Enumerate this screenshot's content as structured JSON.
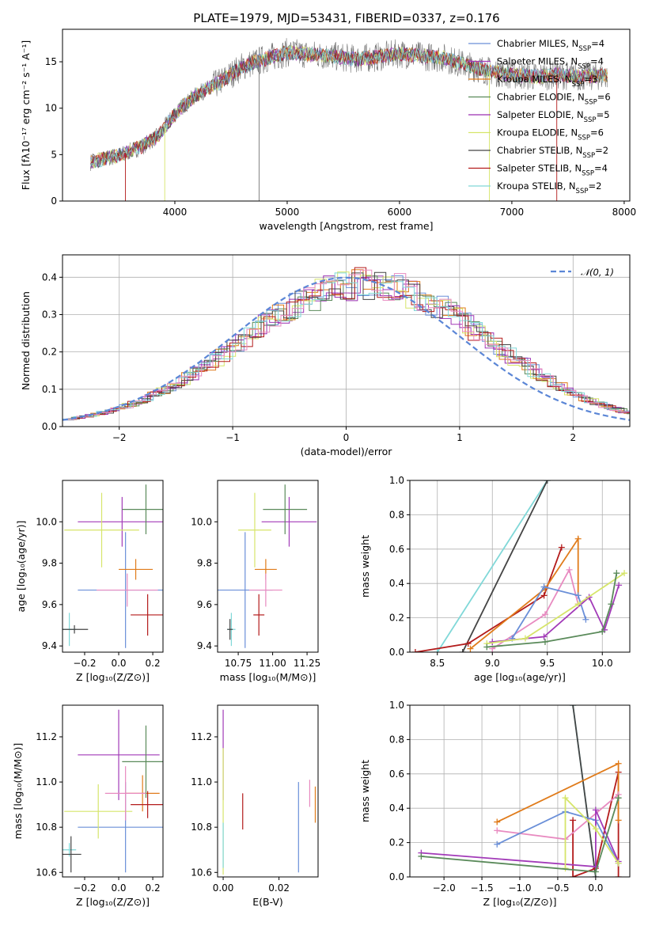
{
  "figure_title": "PLATE=1979, MJD=53431, FIBERID=0337, z=0.176",
  "colors": {
    "Chabrier MILES": "#6a8fd8",
    "Salpeter MILES": "#a23ab8",
    "Kroupa MILES": "#e07b1a",
    "Chabrier ELODIE": "#5a8a5a",
    "Salpeter ELODIE": "#9a2fb0",
    "Kroupa ELODIE": "#d6e56a",
    "Chabrier STELIB": "#444444",
    "Salpeter STELIB": "#b31b1b",
    "Kroupa STELIB": "#80d8d8",
    "pink": "#e88ac0",
    "data": "#777777",
    "gauss": "#5b86d6"
  },
  "chart_data": [
    {
      "id": "spectrum",
      "type": "line",
      "title": "PLATE=1979, MJD=53431, FIBERID=0337, z=0.176",
      "xlabel": "wavelength [Angstrom, rest frame]",
      "ylabel": "Flux [fλ10⁻¹⁷ erg cm⁻² s⁻¹ A⁻¹]",
      "xlim": [
        3000,
        8050
      ],
      "ylim": [
        0,
        18.5
      ],
      "xticks": [
        4000,
        5000,
        6000,
        7000,
        8000
      ],
      "yticks": [
        0,
        5,
        10,
        15
      ],
      "continuum_points": [
        [
          3250,
          4.2
        ],
        [
          3500,
          4.9
        ],
        [
          3700,
          5.8
        ],
        [
          3850,
          7.0
        ],
        [
          3950,
          8.6
        ],
        [
          4050,
          10.0
        ],
        [
          4200,
          11.5
        ],
        [
          4400,
          12.8
        ],
        [
          4600,
          14.5
        ],
        [
          4800,
          15.3
        ],
        [
          5000,
          16.0
        ],
        [
          5200,
          15.8
        ],
        [
          5400,
          15.6
        ],
        [
          5600,
          15.3
        ],
        [
          5800,
          15.5
        ],
        [
          6000,
          15.9
        ],
        [
          6200,
          15.6
        ],
        [
          6400,
          15.4
        ],
        [
          6600,
          14.6
        ],
        [
          6800,
          14.0
        ],
        [
          7000,
          13.6
        ],
        [
          7200,
          13.4
        ],
        [
          7400,
          13.6
        ],
        [
          7600,
          13.4
        ],
        [
          7850,
          13.5
        ]
      ],
      "legend": [
        {
          "label": "Chabrier MILES, N",
          "sub": "SSP",
          "suffix": "=4"
        },
        {
          "label": "Salpeter MILES, N",
          "sub": "SSP",
          "suffix": "=4"
        },
        {
          "label": "Kroupa MILES, N",
          "sub": "SSP",
          "suffix": "=3"
        },
        {
          "label": "Chabrier ELODIE, N",
          "sub": "SSP",
          "suffix": "=6"
        },
        {
          "label": "Salpeter ELODIE, N",
          "sub": "SSP",
          "suffix": "=5"
        },
        {
          "label": "Kroupa ELODIE, N",
          "sub": "SSP",
          "suffix": "=6"
        },
        {
          "label": "Chabrier STELIB, N",
          "sub": "SSP",
          "suffix": "=2"
        },
        {
          "label": "Salpeter STELIB, N",
          "sub": "SSP",
          "suffix": "=4"
        },
        {
          "label": "Kroupa STELIB, N",
          "sub": "SSP",
          "suffix": "=2"
        }
      ],
      "legend_location": "lower right"
    },
    {
      "id": "residuals",
      "type": "line",
      "xlabel": "(data-model)/error",
      "ylabel": "Normed distribution",
      "xlim": [
        -2.5,
        2.5
      ],
      "ylim": [
        0,
        0.46
      ],
      "xticks": [
        -2,
        -1,
        0,
        1,
        2
      ],
      "yticks": [
        0.0,
        0.1,
        0.2,
        0.3,
        0.4
      ],
      "legend": [
        {
          "label": "𝒩(0, 1)"
        }
      ],
      "legend_location": "upper right",
      "grid": true
    },
    {
      "id": "age_vs_Z",
      "type": "scatter",
      "xlabel": "Z [log₁₀(Z/Z⊙)]",
      "ylabel": "age  [log₁₀(age/yr)]",
      "xlim": [
        -0.33,
        0.26
      ],
      "ylim": [
        9.37,
        10.2
      ],
      "xticks": [
        -0.2,
        0.0,
        0.2
      ],
      "yticks": [
        9.4,
        9.6,
        9.8,
        10.0
      ],
      "points": [
        {
          "model": "Chabrier MILES",
          "x": 0.04,
          "y": 9.67,
          "xerr": 0.28,
          "yerr": 0.28
        },
        {
          "model": "Salpeter MILES",
          "x": 0.02,
          "y": 10.0,
          "xerr": 0.26,
          "yerr": 0.12
        },
        {
          "model": "Kroupa MILES",
          "x": 0.1,
          "y": 9.77,
          "xerr": 0.1,
          "yerr": 0.05
        },
        {
          "model": "Chabrier ELODIE",
          "x": 0.16,
          "y": 10.06,
          "xerr": 0.14,
          "yerr": 0.12
        },
        {
          "model": "Kroupa ELODIE",
          "x": -0.1,
          "y": 9.96,
          "xerr": 0.22,
          "yerr": 0.18
        },
        {
          "model": "pink",
          "x": 0.05,
          "y": 9.67,
          "xerr": 0.18,
          "yerr": 0.08
        },
        {
          "model": "Salpeter STELIB",
          "x": 0.17,
          "y": 9.55,
          "xerr": 0.1,
          "yerr": 0.1
        },
        {
          "model": "Kroupa STELIB",
          "x": -0.29,
          "y": 9.48,
          "xerr": 0.04,
          "yerr": 0.08
        },
        {
          "model": "Chabrier STELIB",
          "x": -0.26,
          "y": 9.48,
          "xerr": 0.08,
          "yerr": 0.02
        }
      ]
    },
    {
      "id": "age_vs_mass",
      "type": "scatter",
      "xlabel": "mass [log₁₀(M/M⊙)]",
      "ylabel": "",
      "xlim": [
        10.6,
        11.33
      ],
      "ylim": [
        9.37,
        10.2
      ],
      "xticks": [
        10.75,
        11.0,
        11.25
      ],
      "yticks": [
        9.4,
        9.6,
        9.8,
        10.0
      ],
      "points": [
        {
          "model": "Chabrier MILES",
          "x": 10.8,
          "y": 9.67,
          "xerr": 0.2,
          "yerr": 0.28
        },
        {
          "model": "Salpeter MILES",
          "x": 11.12,
          "y": 10.0,
          "xerr": 0.2,
          "yerr": 0.12
        },
        {
          "model": "Kroupa MILES",
          "x": 10.95,
          "y": 9.77,
          "xerr": 0.08,
          "yerr": 0.05
        },
        {
          "model": "Chabrier ELODIE",
          "x": 11.09,
          "y": 10.06,
          "xerr": 0.16,
          "yerr": 0.12
        },
        {
          "model": "Kroupa ELODIE",
          "x": 10.87,
          "y": 9.96,
          "xerr": 0.12,
          "yerr": 0.18
        },
        {
          "model": "pink",
          "x": 10.95,
          "y": 9.67,
          "xerr": 0.12,
          "yerr": 0.08
        },
        {
          "model": "Salpeter STELIB",
          "x": 10.9,
          "y": 9.55,
          "xerr": 0.04,
          "yerr": 0.1
        },
        {
          "model": "Kroupa STELIB",
          "x": 10.7,
          "y": 9.48,
          "xerr": 0.03,
          "yerr": 0.08
        },
        {
          "model": "Chabrier STELIB",
          "x": 10.69,
          "y": 9.48,
          "xerr": 0.02,
          "yerr": 0.05
        }
      ]
    },
    {
      "id": "massweight_vs_age",
      "type": "line",
      "xlabel": "age  [log₁₀(age/yr)]",
      "ylabel": "mass weight",
      "xlim": [
        8.25,
        10.25
      ],
      "ylim": [
        0,
        1
      ],
      "xticks": [
        8.5,
        9.0,
        9.5,
        10.0
      ],
      "yticks": [
        0.0,
        0.2,
        0.4,
        0.6,
        0.8,
        1.0
      ],
      "grid": true,
      "series": [
        {
          "model": "Kroupa STELIB",
          "x": [
            8.5,
            9.5
          ],
          "y": [
            0.0,
            1.0
          ]
        },
        {
          "model": "Chabrier STELIB",
          "x": [
            8.73,
            9.5
          ],
          "y": [
            0.0,
            1.0
          ]
        },
        {
          "model": "Salpeter STELIB",
          "x": [
            8.3,
            8.78,
            9.47,
            9.63
          ],
          "y": [
            0.0,
            0.05,
            0.33,
            0.61
          ]
        },
        {
          "model": "Kroupa MILES",
          "x": [
            8.8,
            9.48,
            9.78,
            9.78
          ],
          "y": [
            0.02,
            0.37,
            0.66,
            0.33
          ]
        },
        {
          "model": "pink",
          "x": [
            9.0,
            9.48,
            9.7,
            9.78
          ],
          "y": [
            0.02,
            0.22,
            0.48,
            0.28
          ]
        },
        {
          "model": "Chabrier MILES",
          "x": [
            9.18,
            9.47,
            9.78,
            9.85
          ],
          "y": [
            0.08,
            0.38,
            0.33,
            0.19
          ]
        },
        {
          "model": "Salpeter MILES",
          "x": [
            9.0,
            9.47,
            9.88,
            10.02,
            10.15
          ],
          "y": [
            0.06,
            0.09,
            0.32,
            0.13,
            0.39
          ]
        },
        {
          "model": "Kroupa ELODIE",
          "x": [
            8.95,
            9.3,
            9.78,
            10.2
          ],
          "y": [
            0.05,
            0.08,
            0.28,
            0.46
          ]
        },
        {
          "model": "Chabrier ELODIE",
          "x": [
            8.95,
            9.48,
            10.0,
            10.08,
            10.13
          ],
          "y": [
            0.03,
            0.06,
            0.12,
            0.28,
            0.46
          ]
        }
      ]
    },
    {
      "id": "mass_vs_Z",
      "type": "scatter",
      "xlabel": "Z [log₁₀(Z/Z⊙)]",
      "ylabel": "mass [log₁₀(M/M⊙)]",
      "xlim": [
        -0.33,
        0.26
      ],
      "ylim": [
        10.58,
        11.34
      ],
      "xticks": [
        -0.2,
        0.0,
        0.2
      ],
      "yticks": [
        10.6,
        10.8,
        11.0,
        11.2
      ],
      "points": [
        {
          "model": "Chabrier MILES",
          "x": 0.04,
          "y": 10.8,
          "xerr": 0.28,
          "yerr": 0.2
        },
        {
          "model": "Salpeter MILES",
          "x": 0.0,
          "y": 11.12,
          "xerr": 0.24,
          "yerr": 0.2
        },
        {
          "model": "Kroupa MILES",
          "x": 0.14,
          "y": 10.95,
          "xerr": 0.1,
          "yerr": 0.08
        },
        {
          "model": "Chabrier ELODIE",
          "x": 0.16,
          "y": 11.09,
          "xerr": 0.14,
          "yerr": 0.16
        },
        {
          "model": "Kroupa ELODIE",
          "x": -0.12,
          "y": 10.87,
          "xerr": 0.2,
          "yerr": 0.12
        },
        {
          "model": "pink",
          "x": 0.04,
          "y": 10.95,
          "xerr": 0.12,
          "yerr": 0.12
        },
        {
          "model": "Salpeter STELIB",
          "x": 0.17,
          "y": 10.9,
          "xerr": 0.1,
          "yerr": 0.06
        },
        {
          "model": "Kroupa STELIB",
          "x": -0.29,
          "y": 10.7,
          "xerr": 0.04,
          "yerr": 0.03
        },
        {
          "model": "Chabrier STELIB",
          "x": -0.28,
          "y": 10.68,
          "xerr": 0.06,
          "yerr": 0.08
        }
      ]
    },
    {
      "id": "mass_vs_ebv",
      "type": "scatter",
      "xlabel": "E(B-V)",
      "ylabel": "",
      "xlim": [
        -0.002,
        0.034
      ],
      "ylim": [
        10.58,
        11.34
      ],
      "xticks": [
        0.0,
        0.02
      ],
      "yticks": [
        10.6,
        10.8,
        11.0,
        11.2
      ],
      "points": [
        {
          "model": "Salpeter MILES",
          "x": 0.0,
          "y": 11.12,
          "yerr": 0.2
        },
        {
          "model": "Kroupa ELODIE",
          "x": 0.0,
          "y": 10.87,
          "yerr": 0.28
        },
        {
          "model": "Kroupa STELIB",
          "x": 0.0,
          "y": 10.72,
          "yerr": 0.1
        },
        {
          "model": "Salpeter STELIB",
          "x": 0.007,
          "y": 10.87,
          "yerr": 0.08
        },
        {
          "model": "Chabrier MILES",
          "x": 0.027,
          "y": 10.8,
          "yerr": 0.2
        },
        {
          "model": "pink",
          "x": 0.031,
          "y": 10.95,
          "yerr": 0.06
        },
        {
          "model": "Kroupa MILES",
          "x": 0.033,
          "y": 10.9,
          "yerr": 0.08
        }
      ]
    },
    {
      "id": "massweight_vs_Z",
      "type": "line",
      "xlabel": "Z [log₁₀(Z/Z⊙)]",
      "ylabel": "mass weight",
      "xlim": [
        -2.45,
        0.45
      ],
      "ylim": [
        0,
        1
      ],
      "xticks": [
        -2.0,
        -1.5,
        -1.0,
        -0.5,
        0.0
      ],
      "yticks": [
        0.0,
        0.2,
        0.4,
        0.6,
        0.8,
        1.0
      ],
      "grid": true,
      "series": [
        {
          "model": "Kroupa STELIB",
          "x": [
            -0.3,
            0.0
          ],
          "y": [
            1.0,
            0.0
          ]
        },
        {
          "model": "Chabrier STELIB",
          "x": [
            -0.3,
            0.0
          ],
          "y": [
            1.0,
            0.0
          ]
        },
        {
          "model": "Salpeter STELIB",
          "x": [
            -0.3,
            -0.3,
            0.0,
            0.3,
            0.3
          ],
          "y": [
            0.33,
            0.0,
            0.05,
            0.61,
            0.0
          ]
        },
        {
          "model": "Kroupa MILES",
          "x": [
            -1.3,
            0.3,
            0.3
          ],
          "y": [
            0.32,
            0.66,
            0.33
          ]
        },
        {
          "model": "pink",
          "x": [
            -1.3,
            -0.4,
            0.3
          ],
          "y": [
            0.27,
            0.22,
            0.48
          ]
        },
        {
          "model": "Chabrier MILES",
          "x": [
            -1.3,
            -0.4,
            0.0,
            0.3
          ],
          "y": [
            0.19,
            0.38,
            0.33,
            0.08
          ]
        },
        {
          "model": "Salpeter MILES",
          "x": [
            -2.3,
            0.0,
            0.0,
            0.3
          ],
          "y": [
            0.14,
            0.06,
            0.39,
            0.09
          ]
        },
        {
          "model": "Kroupa ELODIE",
          "x": [
            -0.4,
            -0.4,
            0.0,
            0.3
          ],
          "y": [
            0.05,
            0.46,
            0.28,
            0.08
          ]
        },
        {
          "model": "Chabrier ELODIE",
          "x": [
            -2.3,
            0.0,
            0.3
          ],
          "y": [
            0.12,
            0.03,
            0.46
          ]
        }
      ]
    }
  ]
}
